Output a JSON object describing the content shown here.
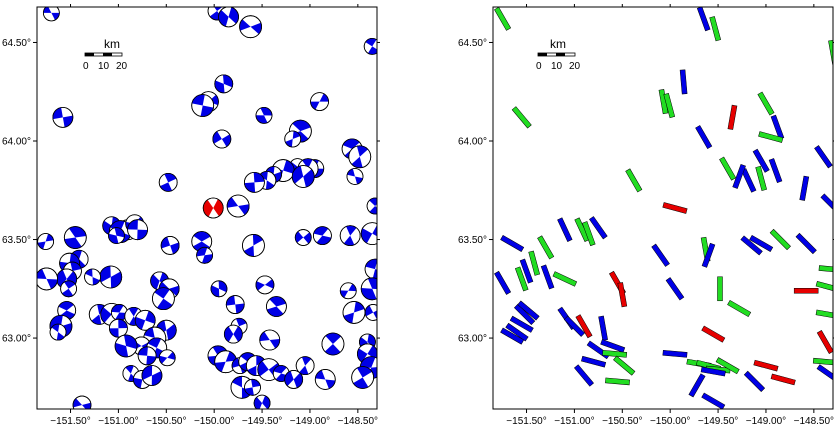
{
  "colors": {
    "blue": "#0000e6",
    "red": "#e60000",
    "green": "#22dd22",
    "frame": "#000000"
  },
  "axes": {
    "lon_range": [
      -151.85,
      -148.3
    ],
    "lat_range": [
      62.64,
      64.68
    ],
    "x_ticks": [
      {
        "lon": -151.5,
        "label": "−151.50°"
      },
      {
        "lon": -151.0,
        "label": "−151.00°"
      },
      {
        "lon": -150.5,
        "label": "−150.50°"
      },
      {
        "lon": -150.0,
        "label": "−150.00°"
      },
      {
        "lon": -149.5,
        "label": "−149.50°"
      },
      {
        "lon": -149.0,
        "label": "−149.00°"
      },
      {
        "lon": -148.5,
        "label": "−148.50°"
      }
    ],
    "y_ticks": [
      {
        "lat": 64.5,
        "label": "64.50°"
      },
      {
        "lat": 64.0,
        "label": "64.00°"
      },
      {
        "lat": 63.5,
        "label": "63.50°"
      },
      {
        "lat": 63.0,
        "label": "63.00°"
      }
    ]
  },
  "scalebar": {
    "title": "km",
    "labels": [
      "0",
      "10",
      "20"
    ]
  },
  "events": [
    {
      "lon": -151.7,
      "lat": 64.65,
      "type": "b"
    },
    {
      "lon": -149.97,
      "lat": 64.66,
      "type": "b"
    },
    {
      "lon": -149.85,
      "lat": 64.63,
      "type": "b"
    },
    {
      "lon": -149.62,
      "lat": 64.58,
      "type": "b"
    },
    {
      "lon": -148.35,
      "lat": 64.48,
      "type": "b"
    },
    {
      "lon": -149.9,
      "lat": 64.29,
      "type": "b"
    },
    {
      "lon": -150.06,
      "lat": 64.2,
      "type": "b"
    },
    {
      "lon": -150.12,
      "lat": 64.18,
      "type": "b"
    },
    {
      "lon": -149.48,
      "lat": 64.13,
      "type": "b"
    },
    {
      "lon": -148.9,
      "lat": 64.2,
      "type": "b"
    },
    {
      "lon": -151.58,
      "lat": 64.12,
      "type": "b"
    },
    {
      "lon": -149.1,
      "lat": 64.05,
      "type": "b"
    },
    {
      "lon": -149.18,
      "lat": 64.01,
      "type": "b"
    },
    {
      "lon": -149.92,
      "lat": 64.01,
      "type": "b"
    },
    {
      "lon": -148.56,
      "lat": 63.96,
      "type": "b"
    },
    {
      "lon": -148.48,
      "lat": 63.92,
      "type": "b"
    },
    {
      "lon": -149.13,
      "lat": 63.87,
      "type": "b"
    },
    {
      "lon": -148.95,
      "lat": 63.86,
      "type": "b"
    },
    {
      "lon": -149.02,
      "lat": 63.86,
      "type": "b"
    },
    {
      "lon": -149.28,
      "lat": 63.85,
      "type": "b"
    },
    {
      "lon": -149.38,
      "lat": 63.83,
      "type": "b"
    },
    {
      "lon": -149.45,
      "lat": 63.8,
      "type": "b"
    },
    {
      "lon": -149.58,
      "lat": 63.79,
      "type": "b"
    },
    {
      "lon": -149.07,
      "lat": 63.82,
      "type": "b"
    },
    {
      "lon": -148.53,
      "lat": 63.82,
      "type": "b"
    },
    {
      "lon": -150.48,
      "lat": 63.79,
      "type": "b"
    },
    {
      "lon": -150.01,
      "lat": 63.66,
      "type": "r"
    },
    {
      "lon": -149.75,
      "lat": 63.67,
      "type": "b"
    },
    {
      "lon": -148.32,
      "lat": 63.67,
      "type": "b"
    },
    {
      "lon": -151.07,
      "lat": 63.57,
      "type": "b"
    },
    {
      "lon": -150.9,
      "lat": 63.55,
      "type": "b"
    },
    {
      "lon": -150.98,
      "lat": 63.54,
      "type": "b"
    },
    {
      "lon": -151.02,
      "lat": 63.52,
      "type": "b"
    },
    {
      "lon": -150.83,
      "lat": 63.58,
      "type": "b"
    },
    {
      "lon": -150.8,
      "lat": 63.55,
      "type": "b"
    },
    {
      "lon": -151.45,
      "lat": 63.51,
      "type": "b"
    },
    {
      "lon": -151.76,
      "lat": 63.49,
      "type": "b"
    },
    {
      "lon": -150.46,
      "lat": 63.47,
      "type": "b"
    },
    {
      "lon": -150.13,
      "lat": 63.49,
      "type": "b"
    },
    {
      "lon": -149.59,
      "lat": 63.47,
      "type": "b"
    },
    {
      "lon": -149.07,
      "lat": 63.51,
      "type": "b"
    },
    {
      "lon": -148.87,
      "lat": 63.52,
      "type": "b"
    },
    {
      "lon": -148.58,
      "lat": 63.52,
      "type": "b"
    },
    {
      "lon": -148.35,
      "lat": 63.53,
      "type": "b"
    },
    {
      "lon": -150.1,
      "lat": 63.42,
      "type": "b"
    },
    {
      "lon": -151.41,
      "lat": 63.4,
      "type": "b"
    },
    {
      "lon": -151.51,
      "lat": 63.38,
      "type": "b"
    },
    {
      "lon": -151.08,
      "lat": 63.31,
      "type": "b"
    },
    {
      "lon": -151.27,
      "lat": 63.31,
      "type": "b"
    },
    {
      "lon": -151.48,
      "lat": 63.34,
      "type": "b"
    },
    {
      "lon": -151.54,
      "lat": 63.3,
      "type": "b"
    },
    {
      "lon": -151.75,
      "lat": 63.3,
      "type": "b"
    },
    {
      "lon": -151.52,
      "lat": 63.25,
      "type": "b"
    },
    {
      "lon": -150.57,
      "lat": 63.29,
      "type": "b"
    },
    {
      "lon": -150.47,
      "lat": 63.25,
      "type": "b"
    },
    {
      "lon": -150.53,
      "lat": 63.2,
      "type": "b"
    },
    {
      "lon": -149.95,
      "lat": 63.25,
      "type": "b"
    },
    {
      "lon": -149.47,
      "lat": 63.27,
      "type": "b"
    },
    {
      "lon": -148.32,
      "lat": 63.35,
      "type": "b"
    },
    {
      "lon": -148.35,
      "lat": 63.25,
      "type": "b"
    },
    {
      "lon": -148.6,
      "lat": 63.24,
      "type": "b"
    },
    {
      "lon": -149.78,
      "lat": 63.17,
      "type": "b"
    },
    {
      "lon": -149.35,
      "lat": 63.16,
      "type": "b"
    },
    {
      "lon": -148.54,
      "lat": 63.13,
      "type": "b"
    },
    {
      "lon": -148.34,
      "lat": 63.13,
      "type": "b"
    },
    {
      "lon": -151.54,
      "lat": 63.14,
      "type": "b"
    },
    {
      "lon": -151.2,
      "lat": 63.12,
      "type": "b"
    },
    {
      "lon": -151.07,
      "lat": 63.12,
      "type": "b"
    },
    {
      "lon": -150.99,
      "lat": 63.13,
      "type": "b"
    },
    {
      "lon": -150.84,
      "lat": 63.11,
      "type": "b"
    },
    {
      "lon": -150.72,
      "lat": 63.09,
      "type": "b"
    },
    {
      "lon": -151.6,
      "lat": 63.06,
      "type": "b"
    },
    {
      "lon": -151.63,
      "lat": 63.03,
      "type": "b"
    },
    {
      "lon": -151.0,
      "lat": 63.05,
      "type": "b"
    },
    {
      "lon": -150.5,
      "lat": 63.04,
      "type": "b"
    },
    {
      "lon": -150.62,
      "lat": 63.0,
      "type": "b"
    },
    {
      "lon": -149.74,
      "lat": 63.06,
      "type": "b"
    },
    {
      "lon": -149.8,
      "lat": 63.02,
      "type": "b"
    },
    {
      "lon": -149.42,
      "lat": 62.99,
      "type": "b"
    },
    {
      "lon": -148.76,
      "lat": 62.97,
      "type": "b"
    },
    {
      "lon": -148.4,
      "lat": 62.98,
      "type": "b"
    },
    {
      "lon": -150.76,
      "lat": 62.96,
      "type": "b"
    },
    {
      "lon": -150.6,
      "lat": 62.95,
      "type": "b"
    },
    {
      "lon": -150.92,
      "lat": 62.96,
      "type": "b"
    },
    {
      "lon": -150.49,
      "lat": 62.9,
      "type": "b"
    },
    {
      "lon": -150.7,
      "lat": 62.91,
      "type": "b"
    },
    {
      "lon": -149.96,
      "lat": 62.91,
      "type": "b"
    },
    {
      "lon": -149.88,
      "lat": 62.88,
      "type": "b"
    },
    {
      "lon": -149.73,
      "lat": 62.86,
      "type": "b"
    },
    {
      "lon": -149.65,
      "lat": 62.88,
      "type": "b"
    },
    {
      "lon": -149.56,
      "lat": 62.86,
      "type": "b"
    },
    {
      "lon": -149.43,
      "lat": 62.84,
      "type": "b"
    },
    {
      "lon": -149.3,
      "lat": 62.82,
      "type": "b"
    },
    {
      "lon": -149.05,
      "lat": 62.86,
      "type": "b"
    },
    {
      "lon": -148.4,
      "lat": 62.92,
      "type": "b"
    },
    {
      "lon": -148.36,
      "lat": 62.85,
      "type": "b"
    },
    {
      "lon": -150.87,
      "lat": 62.82,
      "type": "b"
    },
    {
      "lon": -150.75,
      "lat": 62.79,
      "type": "b"
    },
    {
      "lon": -150.65,
      "lat": 62.81,
      "type": "b"
    },
    {
      "lon": -149.71,
      "lat": 62.75,
      "type": "b"
    },
    {
      "lon": -149.6,
      "lat": 62.75,
      "type": "b"
    },
    {
      "lon": -149.17,
      "lat": 62.79,
      "type": "b"
    },
    {
      "lon": -148.84,
      "lat": 62.79,
      "type": "b"
    },
    {
      "lon": -148.45,
      "lat": 62.8,
      "type": "b"
    },
    {
      "lon": -149.5,
      "lat": 62.67,
      "type": "b"
    },
    {
      "lon": -151.38,
      "lat": 62.66,
      "type": "b"
    }
  ],
  "axes_bars": [
    {
      "lon": -151.75,
      "lat": 64.62,
      "ang": 60,
      "type": "g"
    },
    {
      "lon": -149.65,
      "lat": 64.62,
      "ang": 70,
      "type": "b"
    },
    {
      "lon": -149.53,
      "lat": 64.57,
      "ang": 75,
      "type": "g"
    },
    {
      "lon": -148.3,
      "lat": 64.45,
      "ang": 80,
      "type": "g"
    },
    {
      "lon": -149.86,
      "lat": 64.3,
      "ang": 85,
      "type": "b"
    },
    {
      "lon": -150.07,
      "lat": 64.2,
      "ang": 80,
      "type": "g"
    },
    {
      "lon": -150.01,
      "lat": 64.18,
      "ang": 75,
      "type": "g"
    },
    {
      "lon": -149.0,
      "lat": 64.19,
      "ang": 60,
      "type": "g"
    },
    {
      "lon": -151.55,
      "lat": 64.12,
      "ang": 50,
      "type": "g"
    },
    {
      "lon": -149.35,
      "lat": 64.12,
      "ang": 100,
      "type": "r"
    },
    {
      "lon": -148.88,
      "lat": 64.07,
      "ang": 70,
      "type": "b"
    },
    {
      "lon": -148.95,
      "lat": 64.02,
      "ang": 15,
      "type": "g"
    },
    {
      "lon": -149.65,
      "lat": 64.02,
      "ang": 60,
      "type": "b"
    },
    {
      "lon": -148.4,
      "lat": 63.92,
      "ang": 55,
      "type": "b"
    },
    {
      "lon": -149.05,
      "lat": 63.9,
      "ang": 60,
      "type": "b"
    },
    {
      "lon": -148.9,
      "lat": 63.85,
      "ang": 70,
      "type": "b"
    },
    {
      "lon": -149.05,
      "lat": 63.81,
      "ang": 75,
      "type": "g"
    },
    {
      "lon": -149.18,
      "lat": 63.8,
      "ang": 65,
      "type": "b"
    },
    {
      "lon": -149.4,
      "lat": 63.86,
      "ang": 60,
      "type": "g"
    },
    {
      "lon": -149.28,
      "lat": 63.82,
      "ang": 110,
      "type": "b"
    },
    {
      "lon": -148.6,
      "lat": 63.76,
      "ang": 100,
      "type": "b"
    },
    {
      "lon": -150.38,
      "lat": 63.8,
      "ang": 60,
      "type": "g"
    },
    {
      "lon": -149.95,
      "lat": 63.66,
      "ang": 15,
      "type": "r"
    },
    {
      "lon": -148.32,
      "lat": 63.68,
      "ang": 45,
      "type": "b"
    },
    {
      "lon": -151.1,
      "lat": 63.55,
      "ang": 65,
      "type": "b"
    },
    {
      "lon": -150.92,
      "lat": 63.55,
      "ang": 65,
      "type": "g"
    },
    {
      "lon": -150.85,
      "lat": 63.53,
      "ang": 70,
      "type": "g"
    },
    {
      "lon": -150.75,
      "lat": 63.56,
      "ang": 55,
      "type": "b"
    },
    {
      "lon": -151.65,
      "lat": 63.48,
      "ang": 30,
      "type": "b"
    },
    {
      "lon": -151.3,
      "lat": 63.46,
      "ang": 60,
      "type": "g"
    },
    {
      "lon": -149.63,
      "lat": 63.45,
      "ang": 80,
      "type": "g"
    },
    {
      "lon": -149.6,
      "lat": 63.42,
      "ang": 110,
      "type": "b"
    },
    {
      "lon": -149.05,
      "lat": 63.48,
      "ang": 30,
      "type": "b"
    },
    {
      "lon": -149.15,
      "lat": 63.47,
      "ang": 40,
      "type": "b"
    },
    {
      "lon": -148.85,
      "lat": 63.5,
      "ang": 45,
      "type": "g"
    },
    {
      "lon": -148.58,
      "lat": 63.48,
      "ang": 45,
      "type": "b"
    },
    {
      "lon": -150.1,
      "lat": 63.42,
      "ang": 55,
      "type": "b"
    },
    {
      "lon": -151.42,
      "lat": 63.38,
      "ang": 75,
      "type": "g"
    },
    {
      "lon": -151.5,
      "lat": 63.34,
      "ang": 70,
      "type": "b"
    },
    {
      "lon": -151.55,
      "lat": 63.3,
      "ang": 70,
      "type": "g"
    },
    {
      "lon": -151.75,
      "lat": 63.28,
      "ang": 60,
      "type": "b"
    },
    {
      "lon": -151.28,
      "lat": 63.31,
      "ang": 70,
      "type": "b"
    },
    {
      "lon": -151.1,
      "lat": 63.3,
      "ang": 25,
      "type": "g"
    },
    {
      "lon": -150.55,
      "lat": 63.28,
      "ang": 60,
      "type": "r"
    },
    {
      "lon": -150.5,
      "lat": 63.22,
      "ang": 80,
      "type": "r"
    },
    {
      "lon": -149.95,
      "lat": 63.25,
      "ang": 55,
      "type": "b"
    },
    {
      "lon": -149.48,
      "lat": 63.25,
      "ang": 90,
      "type": "g"
    },
    {
      "lon": -149.28,
      "lat": 63.15,
      "ang": 30,
      "type": "g"
    },
    {
      "lon": -148.58,
      "lat": 63.24,
      "ang": 0,
      "type": "r"
    },
    {
      "lon": -148.35,
      "lat": 63.26,
      "ang": 15,
      "type": "g"
    },
    {
      "lon": -148.32,
      "lat": 63.35,
      "ang": 5,
      "type": "g"
    },
    {
      "lon": -148.35,
      "lat": 63.12,
      "ang": 10,
      "type": "g"
    },
    {
      "lon": -151.52,
      "lat": 63.12,
      "ang": 45,
      "type": "b"
    },
    {
      "lon": -151.48,
      "lat": 63.14,
      "ang": 40,
      "type": "b"
    },
    {
      "lon": -151.55,
      "lat": 63.07,
      "ang": 30,
      "type": "b"
    },
    {
      "lon": -151.6,
      "lat": 63.03,
      "ang": 35,
      "type": "b"
    },
    {
      "lon": -151.65,
      "lat": 63.01,
      "ang": 30,
      "type": "b"
    },
    {
      "lon": -151.08,
      "lat": 63.1,
      "ang": 55,
      "type": "b"
    },
    {
      "lon": -150.9,
      "lat": 63.06,
      "ang": 60,
      "type": "r"
    },
    {
      "lon": -150.7,
      "lat": 63.05,
      "ang": 80,
      "type": "b"
    },
    {
      "lon": -151.0,
      "lat": 63.06,
      "ang": 45,
      "type": "b"
    },
    {
      "lon": -149.55,
      "lat": 63.02,
      "ang": 30,
      "type": "r"
    },
    {
      "lon": -148.38,
      "lat": 62.98,
      "ang": 60,
      "type": "r"
    },
    {
      "lon": -150.6,
      "lat": 62.96,
      "ang": 20,
      "type": "b"
    },
    {
      "lon": -150.75,
      "lat": 62.94,
      "ang": 35,
      "type": "b"
    },
    {
      "lon": -150.58,
      "lat": 62.92,
      "ang": 5,
      "type": "g"
    },
    {
      "lon": -150.8,
      "lat": 62.88,
      "ang": 15,
      "type": "b"
    },
    {
      "lon": -150.48,
      "lat": 62.86,
      "ang": 40,
      "type": "g"
    },
    {
      "lon": -149.95,
      "lat": 62.92,
      "ang": 5,
      "type": "b"
    },
    {
      "lon": -149.7,
      "lat": 62.87,
      "ang": 10,
      "type": "g"
    },
    {
      "lon": -149.6,
      "lat": 62.86,
      "ang": 15,
      "type": "g"
    },
    {
      "lon": -149.5,
      "lat": 62.84,
      "ang": 5,
      "type": "g"
    },
    {
      "lon": -149.4,
      "lat": 62.86,
      "ang": 30,
      "type": "g"
    },
    {
      "lon": -149.55,
      "lat": 62.83,
      "ang": 10,
      "type": "b"
    },
    {
      "lon": -149.0,
      "lat": 62.86,
      "ang": 15,
      "type": "r"
    },
    {
      "lon": -148.38,
      "lat": 62.88,
      "ang": 5,
      "type": "g"
    },
    {
      "lon": -148.35,
      "lat": 62.82,
      "ang": 35,
      "type": "b"
    },
    {
      "lon": -150.9,
      "lat": 62.81,
      "ang": 50,
      "type": "b"
    },
    {
      "lon": -150.55,
      "lat": 62.78,
      "ang": 5,
      "type": "g"
    },
    {
      "lon": -149.72,
      "lat": 62.76,
      "ang": 120,
      "type": "b"
    },
    {
      "lon": -149.12,
      "lat": 62.78,
      "ang": 45,
      "type": "b"
    },
    {
      "lon": -148.82,
      "lat": 62.79,
      "ang": 15,
      "type": "r"
    },
    {
      "lon": -149.55,
      "lat": 62.68,
      "ang": 30,
      "type": "b"
    }
  ]
}
